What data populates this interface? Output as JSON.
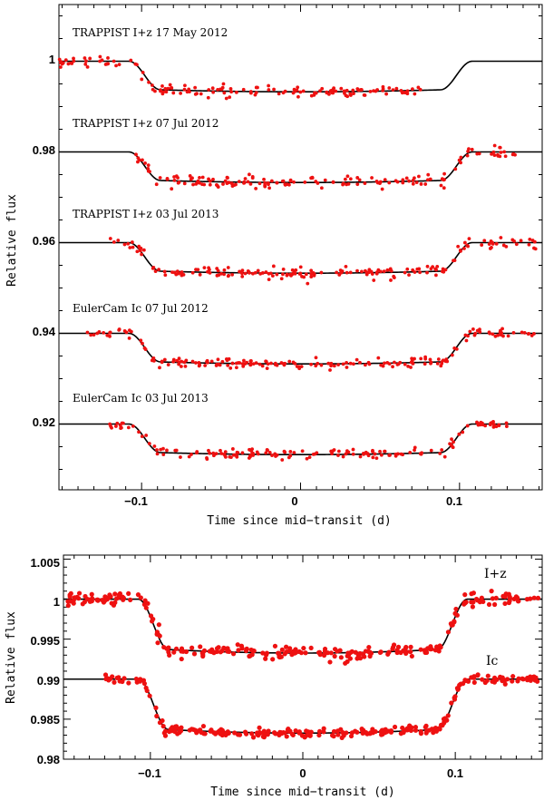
{
  "chart_data": [
    {
      "type": "scatter",
      "title": "",
      "xlabel": "Time since mid−transit (d)",
      "ylabel": "Relative flux",
      "xlim": [
        -0.152,
        0.152
      ],
      "ylim": [
        0.9055,
        1.0125
      ],
      "x_ticks": [
        "−0.1",
        "0",
        "0.1"
      ],
      "x_tick_values": [
        -0.1,
        0,
        0.1
      ],
      "y_ticks": [
        "1",
        "0.98",
        "0.96",
        "0.94",
        "0.92"
      ],
      "y_tick_values": [
        1.0,
        0.98,
        0.96,
        0.94,
        0.92
      ],
      "transit": {
        "t1": 0.108,
        "t2": 0.088,
        "depth": 0.0063
      },
      "series": [
        {
          "name": "TRAPPIST I+z 17 May 2012",
          "label": "TRAPPIST I+z 17 May 2012",
          "baseline": 1.0,
          "x_range": [
            -0.152,
            0.077
          ],
          "n_points": 150,
          "scatter": 0.0009,
          "model_range": [
            -0.152,
            0.152
          ]
        },
        {
          "name": "TRAPPIST I+z 07 Jul 2012",
          "label": "TRAPPIST I+z 07 Jul 2012",
          "baseline": 0.98,
          "x_range": [
            -0.105,
            0.135
          ],
          "n_points": 160,
          "scatter": 0.001,
          "model_range": [
            -0.152,
            0.152
          ]
        },
        {
          "name": "TRAPPIST I+z 03 Jul 2013",
          "label": "TRAPPIST I+z 03 Jul 2013",
          "baseline": 0.96,
          "x_range": [
            -0.12,
            0.15
          ],
          "n_points": 180,
          "scatter": 0.0009,
          "model_range": [
            -0.152,
            0.152
          ]
        },
        {
          "name": "EulerCam Ic 07 Jul 2012",
          "label": "EulerCam Ic 07 Jul 2012",
          "baseline": 0.94,
          "x_range": [
            -0.135,
            0.15
          ],
          "n_points": 190,
          "scatter": 0.0007,
          "model_range": [
            -0.152,
            0.152
          ]
        },
        {
          "name": "EulerCam Ic 03 Jul 2013",
          "label": "EulerCam Ic 03 Jul 2013",
          "baseline": 0.92,
          "x_range": [
            -0.12,
            0.13
          ],
          "n_points": 160,
          "scatter": 0.0008,
          "model_range": [
            -0.152,
            0.152
          ]
        }
      ]
    },
    {
      "type": "scatter",
      "title": "",
      "xlabel": "Time since mid−transit (d)",
      "ylabel": "Relative flux",
      "xlim": [
        -0.157,
        0.157
      ],
      "ylim": [
        0.98,
        1.0055
      ],
      "x_ticks": [
        "−0.1",
        "0",
        "0.1"
      ],
      "x_tick_values": [
        -0.1,
        0,
        0.1
      ],
      "y_ticks": [
        "1.005",
        "1",
        "0.995",
        "0.99",
        "0.985",
        "0.98"
      ],
      "y_tick_values": [
        1.005,
        1.0,
        0.995,
        0.99,
        0.985,
        0.98
      ],
      "transit": {
        "t1": 0.108,
        "t2": 0.088,
        "depth": 0.0063
      },
      "series": [
        {
          "name": "I+z",
          "label": "I+z",
          "baseline": 1.0,
          "x_range": [
            -0.155,
            0.155
          ],
          "n_points": 260,
          "scatter": 0.0006,
          "model_range": [
            -0.157,
            0.157
          ]
        },
        {
          "name": "Ic",
          "label": "Ic",
          "baseline": 0.99,
          "x_range": [
            -0.13,
            0.155
          ],
          "n_points": 260,
          "scatter": 0.0004,
          "model_range": [
            -0.157,
            0.157
          ]
        }
      ]
    }
  ]
}
